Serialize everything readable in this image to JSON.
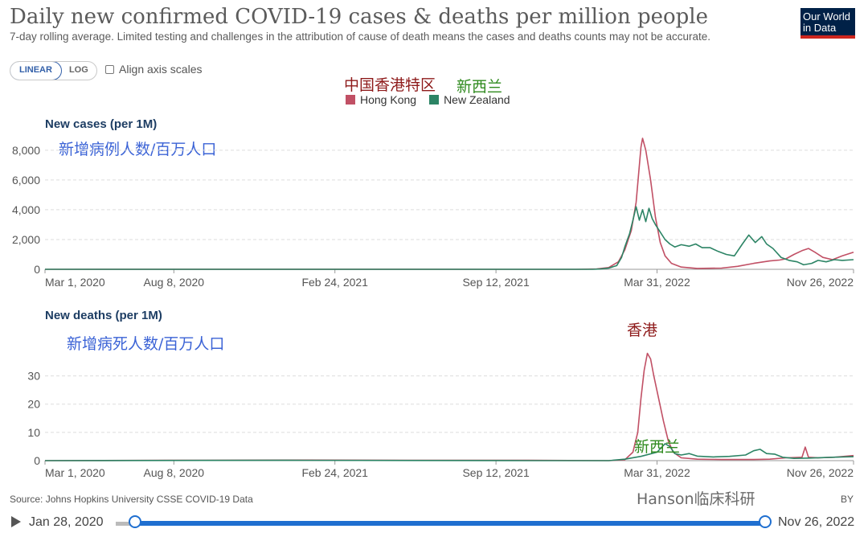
{
  "header": {
    "title": "Daily new confirmed COVID-19 cases & deaths per million people",
    "subtitle": "7-day rolling average. Limited testing and challenges in the attribution of cause of death means the cases and deaths counts may not be accurate.",
    "logo_line1": "Our World",
    "logo_line2": "in Data"
  },
  "controls": {
    "linear_label": "LINEAR",
    "log_label": "LOG",
    "align_label": "Align axis scales"
  },
  "annotations": {
    "hk_cn": "中国香港特区",
    "nz_cn": "新西兰",
    "cases_cn": "新增病例人数/百万人口",
    "deaths_cn": "新增病死人数/百万人口",
    "peak_hk_cn": "香港",
    "peak_nz_cn": "新西兰"
  },
  "legend": [
    {
      "name": "Hong Kong",
      "color": "#c15065"
    },
    {
      "name": "New Zealand",
      "color": "#2c8465"
    }
  ],
  "colors": {
    "hong_kong": "#c15065",
    "new_zealand": "#2c8465",
    "accent": "#1f6fd0"
  },
  "chart_data": [
    {
      "type": "line",
      "title": "New cases (per 1M)",
      "x_ticks": [
        "Mar 1, 2020",
        "Aug 8, 2020",
        "Feb 24, 2021",
        "Sep 12, 2021",
        "Mar 31, 2022",
        "Nov 26, 2022"
      ],
      "y_ticks": [
        "0",
        "2,000",
        "4,000",
        "6,000",
        "8,000"
      ],
      "ylim": [
        0,
        8800
      ],
      "series": [
        {
          "name": "Hong Kong",
          "color": "#c15065",
          "points": [
            [
              0,
              0
            ],
            [
              300,
              3
            ],
            [
              600,
              2
            ],
            [
              660,
              2
            ],
            [
              685,
              20
            ],
            [
              700,
              120
            ],
            [
              712,
              500
            ],
            [
              720,
              1300
            ],
            [
              728,
              2600
            ],
            [
              734,
              4500
            ],
            [
              740,
              8200
            ],
            [
              742,
              8800
            ],
            [
              746,
              8000
            ],
            [
              752,
              6000
            ],
            [
              758,
              3500
            ],
            [
              764,
              1800
            ],
            [
              770,
              900
            ],
            [
              778,
              400
            ],
            [
              790,
              150
            ],
            [
              810,
              60
            ],
            [
              840,
              80
            ],
            [
              860,
              200
            ],
            [
              880,
              400
            ],
            [
              900,
              560
            ],
            [
              912,
              620
            ],
            [
              920,
              700
            ],
            [
              930,
              1000
            ],
            [
              940,
              1250
            ],
            [
              948,
              1400
            ],
            [
              956,
              1150
            ],
            [
              966,
              800
            ],
            [
              978,
              650
            ],
            [
              990,
              900
            ],
            [
              1004,
              1150
            ]
          ]
        },
        {
          "name": "New Zealand",
          "color": "#2c8465",
          "points": [
            [
              0,
              0
            ],
            [
              300,
              2
            ],
            [
              600,
              1
            ],
            [
              680,
              0
            ],
            [
              690,
              20
            ],
            [
              700,
              80
            ],
            [
              710,
              250
            ],
            [
              716,
              800
            ],
            [
              720,
              1500
            ],
            [
              726,
              2400
            ],
            [
              730,
              3300
            ],
            [
              734,
              4200
            ],
            [
              738,
              3300
            ],
            [
              742,
              4000
            ],
            [
              746,
              3200
            ],
            [
              750,
              4100
            ],
            [
              754,
              3400
            ],
            [
              758,
              3000
            ],
            [
              764,
              2500
            ],
            [
              770,
              2000
            ],
            [
              776,
              1700
            ],
            [
              782,
              1500
            ],
            [
              790,
              1650
            ],
            [
              800,
              1550
            ],
            [
              808,
              1700
            ],
            [
              816,
              1450
            ],
            [
              826,
              1450
            ],
            [
              836,
              1200
            ],
            [
              846,
              1000
            ],
            [
              856,
              900
            ],
            [
              866,
              1700
            ],
            [
              874,
              2300
            ],
            [
              882,
              1800
            ],
            [
              890,
              2200
            ],
            [
              896,
              1700
            ],
            [
              904,
              1400
            ],
            [
              914,
              800
            ],
            [
              924,
              600
            ],
            [
              934,
              500
            ],
            [
              942,
              300
            ],
            [
              952,
              400
            ],
            [
              960,
              600
            ],
            [
              970,
              500
            ],
            [
              980,
              650
            ],
            [
              990,
              600
            ],
            [
              1004,
              650
            ]
          ]
        }
      ]
    },
    {
      "type": "line",
      "title": "New deaths (per 1M)",
      "x_ticks": [
        "Mar 1, 2020",
        "Aug 8, 2020",
        "Feb 24, 2021",
        "Sep 12, 2021",
        "Mar 31, 2022",
        "Nov 26, 2022"
      ],
      "y_ticks": [
        "0",
        "10",
        "20",
        "30"
      ],
      "ylim": [
        0,
        39
      ],
      "series": [
        {
          "name": "Hong Kong",
          "color": "#c15065",
          "points": [
            [
              0,
              0
            ],
            [
              150,
              0.1
            ],
            [
              300,
              0.2
            ],
            [
              450,
              0.1
            ],
            [
              600,
              0.1
            ],
            [
              700,
              0
            ],
            [
              720,
              0.3
            ],
            [
              730,
              3
            ],
            [
              736,
              10
            ],
            [
              740,
              22
            ],
            [
              744,
              32
            ],
            [
              748,
              38
            ],
            [
              752,
              36
            ],
            [
              756,
              30
            ],
            [
              762,
              22
            ],
            [
              768,
              14
            ],
            [
              774,
              7
            ],
            [
              780,
              3
            ],
            [
              790,
              1
            ],
            [
              810,
              0.5
            ],
            [
              840,
              0.4
            ],
            [
              880,
              0.4
            ],
            [
              900,
              0.5
            ],
            [
              920,
              1
            ],
            [
              940,
              1.2
            ],
            [
              944,
              4.8
            ],
            [
              948,
              1.2
            ],
            [
              960,
              1
            ],
            [
              980,
              1.2
            ],
            [
              1004,
              1.8
            ]
          ]
        },
        {
          "name": "New Zealand",
          "color": "#2c8465",
          "points": [
            [
              0,
              0
            ],
            [
              300,
              0.1
            ],
            [
              600,
              0
            ],
            [
              700,
              0
            ],
            [
              720,
              0.5
            ],
            [
              740,
              1.5
            ],
            [
              760,
              3
            ],
            [
              770,
              6
            ],
            [
              776,
              5
            ],
            [
              782,
              2.5
            ],
            [
              790,
              2
            ],
            [
              800,
              2.5
            ],
            [
              810,
              1.6
            ],
            [
              830,
              1.3
            ],
            [
              850,
              1.5
            ],
            [
              870,
              2
            ],
            [
              880,
              3.5
            ],
            [
              888,
              4
            ],
            [
              896,
              2.5
            ],
            [
              906,
              2.3
            ],
            [
              916,
              1.2
            ],
            [
              930,
              0.8
            ],
            [
              950,
              0.9
            ],
            [
              970,
              1.1
            ],
            [
              990,
              1.3
            ],
            [
              1004,
              1.4
            ]
          ]
        }
      ]
    }
  ],
  "footer": {
    "source": "Source: Johns Hopkins University CSSE COVID-19 Data",
    "watermark": "Hanson临床科研",
    "by": "BY",
    "start_date": "Jan 28, 2020",
    "end_date": "Nov 26, 2022"
  }
}
